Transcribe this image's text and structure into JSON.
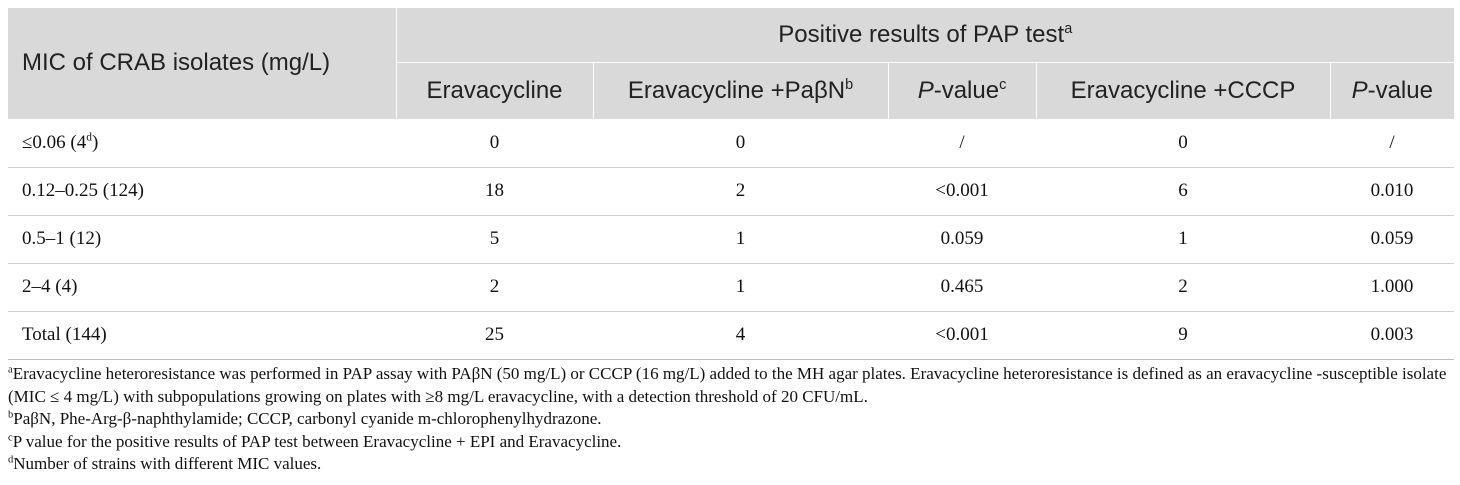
{
  "table": {
    "header": {
      "row_label": "MIC of CRAB isolates (mg/L)",
      "group_label": "Positive results of PAP test",
      "group_label_sup": "a",
      "columns": [
        {
          "text": "Eravacycline",
          "sup": ""
        },
        {
          "text": "Eravacycline +PaβN",
          "sup": "b"
        },
        {
          "italic": "P",
          "text": "-value",
          "sup": "c"
        },
        {
          "text": "Eravacycline +CCCP",
          "sup": ""
        },
        {
          "italic": "P",
          "text": "-value",
          "sup": ""
        }
      ]
    },
    "rows": [
      {
        "label": "≤0.06 (4",
        "label_sup": "d",
        "label_end": ")",
        "values": [
          "0",
          "0",
          "/",
          "0",
          "/"
        ]
      },
      {
        "label": "0.12–0.25 (124)",
        "label_sup": "",
        "label_end": "",
        "values": [
          "18",
          "2",
          "<0.001",
          "6",
          "0.010"
        ]
      },
      {
        "label": "0.5–1 (12)",
        "label_sup": "",
        "label_end": "",
        "values": [
          "5",
          "1",
          "0.059",
          "1",
          "0.059"
        ]
      },
      {
        "label": "2–4 (4)",
        "label_sup": "",
        "label_end": "",
        "values": [
          "2",
          "1",
          "0.465",
          "2",
          "1.000"
        ]
      },
      {
        "label": "Total (144)",
        "label_sup": "",
        "label_end": "",
        "values": [
          "25",
          "4",
          "<0.001",
          "9",
          "0.003"
        ]
      }
    ]
  },
  "footnotes": [
    {
      "mark": "a",
      "text": "Eravacycline heteroresistance was performed in PAP assay with PAβN (50 mg/L) or CCCP (16 mg/L) added to the MH agar plates. Eravacycline heteroresistance is defined as an eravacycline -susceptible isolate (MIC ≤ 4 mg/L) with subpopulations growing on plates with ≥8 mg/L eravacycline, with a detection threshold of 20 CFU/mL."
    },
    {
      "mark": "b",
      "text": "PaβN, Phe-Arg-β-naphthylamide; CCCP, carbonyl cyanide m-chlorophenylhydrazone."
    },
    {
      "mark": "c",
      "text": "P value for the positive results of PAP test between Eravacycline + EPI and Eravacycline."
    },
    {
      "mark": "d",
      "text": "Number of strains with different MIC values."
    }
  ]
}
